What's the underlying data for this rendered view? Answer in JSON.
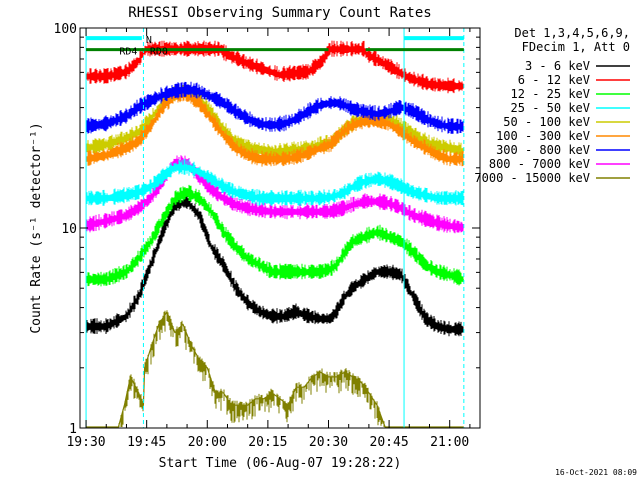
{
  "chart_data": {
    "type": "line",
    "title": "RHESSI Observing Summary Count Rates",
    "xlabel": "Start Time (06-Aug-07 19:28:22)",
    "ylabel": "Count Rate (s⁻¹ detector⁻¹)",
    "yscale": "log",
    "ylim": [
      1,
      100
    ],
    "xlim_minutes": [
      -1.5,
      97.5
    ],
    "x_ticks": [
      {
        "label": "19:30",
        "minute": 0
      },
      {
        "label": "19:45",
        "minute": 15
      },
      {
        "label": "20:00",
        "minute": 30
      },
      {
        "label": "20:15",
        "minute": 45
      },
      {
        "label": "20:30",
        "minute": 60
      },
      {
        "label": "20:45",
        "minute": 75
      },
      {
        "label": "21:00",
        "minute": 90
      }
    ],
    "y_tick_labels": [
      {
        "label": "1",
        "value": 1
      },
      {
        "label": "10",
        "value": 10
      },
      {
        "label": "100",
        "value": 100
      }
    ],
    "info_lines": [
      "Det 1,3,4,5,6,9,",
      "FDecim 1, Att 0"
    ],
    "footer_date": "16-Oct-2021 08:09",
    "series": [
      {
        "name": "3 - 6 keV",
        "color": "#000000",
        "x": [
          0,
          5,
          10,
          13,
          16,
          19,
          22,
          25,
          28,
          31,
          34,
          37,
          40,
          43,
          46,
          49,
          52,
          55,
          58,
          60.5,
          62,
          64,
          66,
          69,
          72,
          75,
          78,
          81,
          84,
          87,
          90,
          93.5
        ],
        "y": [
          3.2,
          3.2,
          3.6,
          4.5,
          6.5,
          9.5,
          13,
          13.5,
          11.5,
          8,
          6.5,
          5,
          4.2,
          3.8,
          3.6,
          3.6,
          3.8,
          3.6,
          3.5,
          3.5,
          3.8,
          4.5,
          5,
          5.5,
          6,
          6,
          5.8,
          4.5,
          3.5,
          3.2,
          3.1,
          3.1
        ]
      },
      {
        "name": "6 - 12 keV",
        "color": "#ff0000",
        "x": [
          0,
          5,
          10,
          13,
          14.3,
          15,
          20,
          30,
          33.5,
          34,
          40,
          48,
          55,
          58.5,
          60.2,
          61,
          66,
          68.8,
          69.3,
          75,
          80,
          85,
          90,
          93.5
        ],
        "y": [
          57,
          57,
          60,
          68,
          76,
          78,
          78,
          78,
          78,
          75,
          66,
          58,
          60,
          68,
          78,
          78,
          78,
          78,
          74,
          64,
          56,
          52,
          51,
          51
        ]
      },
      {
        "name": "12 - 25 keV",
        "color": "#00ff00",
        "x": [
          0,
          5,
          10,
          13,
          16,
          19,
          22,
          25,
          28,
          31,
          34,
          37,
          40,
          43,
          46,
          49,
          52,
          55,
          58,
          60.5,
          62,
          64,
          66,
          69,
          72,
          75,
          78,
          81,
          84,
          87,
          90,
          93.5
        ],
        "y": [
          5.5,
          5.5,
          6,
          7,
          8.5,
          11,
          14,
          15,
          14,
          12,
          9.5,
          8,
          7,
          6.5,
          6,
          6,
          6,
          6,
          6,
          6.2,
          6.5,
          7.5,
          8.5,
          9,
          9.5,
          9,
          8.5,
          7.5,
          6.5,
          6,
          5.8,
          5.5
        ]
      },
      {
        "name": "25 - 50 keV",
        "color": "#00ffff",
        "x": [
          0,
          5,
          10,
          13,
          16,
          19,
          22,
          25,
          28,
          31,
          34,
          37,
          40,
          43,
          46,
          49,
          52,
          55,
          58,
          60.5,
          62,
          64,
          66,
          69,
          72,
          75,
          78,
          81,
          84,
          87,
          90,
          93.5
        ],
        "y": [
          14,
          14,
          14.5,
          15,
          16,
          18,
          20,
          20,
          19,
          17.5,
          16,
          15,
          14.5,
          14,
          14,
          14,
          14,
          14,
          14,
          14.2,
          14.5,
          15,
          16,
          17,
          17.5,
          17,
          16,
          15,
          14.5,
          14,
          14,
          14
        ]
      },
      {
        "name": "50 - 100 keV",
        "color": "#cccc00",
        "x": [
          0,
          5,
          10,
          13,
          16,
          19,
          22,
          25,
          28,
          31,
          34,
          37,
          40,
          43,
          46,
          49,
          52,
          55,
          58,
          60.5,
          62,
          64,
          66,
          69,
          72,
          75,
          78,
          81,
          84,
          87,
          90,
          93.5
        ],
        "y": [
          25,
          26,
          28,
          30,
          35,
          42,
          47,
          48,
          44,
          38,
          31,
          27,
          25,
          24.5,
          24,
          24,
          24.5,
          25,
          26,
          26.5,
          28,
          31,
          33,
          35,
          36,
          35,
          32,
          29,
          27,
          25.5,
          25,
          24
        ]
      },
      {
        "name": "100 - 300 keV",
        "color": "#ff8800",
        "x": [
          0,
          5,
          10,
          13,
          16,
          19,
          22,
          25,
          28,
          31,
          34,
          37,
          40,
          43,
          46,
          49,
          52,
          55,
          58,
          60.5,
          62,
          64,
          66,
          69,
          72,
          75,
          78,
          81,
          84,
          87,
          90,
          93.5
        ],
        "y": [
          22,
          23,
          25,
          27,
          32,
          40,
          46,
          46,
          42,
          35,
          29,
          25,
          23,
          22,
          22,
          22,
          22.5,
          23.5,
          25,
          26,
          28,
          30.5,
          32.5,
          34,
          34.5,
          33,
          30,
          27,
          25,
          23,
          22,
          22
        ]
      },
      {
        "name": "300 - 800 keV",
        "color": "#0000ff",
        "x": [
          0,
          5,
          10,
          13,
          16,
          19,
          22,
          25,
          28,
          31,
          34,
          37,
          40,
          43,
          46,
          49,
          52,
          55,
          58,
          60.5,
          62,
          64,
          66,
          69,
          72,
          75,
          78,
          81,
          84,
          87,
          90,
          93.5
        ],
        "y": [
          32,
          33,
          36,
          40,
          43,
          46,
          48,
          49,
          48,
          45,
          42,
          38,
          35,
          33,
          32.5,
          33,
          35,
          38,
          41,
          42,
          42,
          41,
          39,
          38,
          37,
          38,
          40,
          38,
          35,
          33,
          32,
          32
        ]
      },
      {
        "name": "800 - 7000 keV",
        "color": "#ff00ff",
        "x": [
          0,
          5,
          10,
          13,
          16,
          19,
          22,
          25,
          28,
          31,
          34,
          37,
          40,
          43,
          46,
          49,
          52,
          55,
          58,
          60.5,
          62,
          64,
          66,
          69,
          72,
          75,
          78,
          81,
          84,
          87,
          90,
          93.5
        ],
        "y": [
          10.2,
          10.8,
          11.5,
          12.5,
          14,
          17,
          21,
          21,
          18,
          15.5,
          14,
          13,
          12.5,
          12.2,
          12,
          12,
          12,
          12,
          12,
          12,
          12.2,
          12.5,
          13,
          13.5,
          13.5,
          13.2,
          12.5,
          11.5,
          11,
          10.5,
          10.2,
          10
        ]
      },
      {
        "name": "7000 - 15000 keV",
        "color": "#808000",
        "x": [
          0,
          5,
          8,
          9.5,
          11,
          13,
          14.2,
          14.5,
          16,
          18,
          20,
          22,
          24,
          26,
          28,
          30,
          32,
          34,
          36,
          38,
          40,
          42,
          44,
          46,
          48,
          50,
          52,
          54,
          56,
          58,
          60,
          62,
          64,
          66,
          68,
          70,
          72,
          74,
          76,
          78,
          80,
          82,
          84,
          86,
          88,
          90,
          93.5
        ],
        "y": [
          1,
          1,
          1,
          1.3,
          1.8,
          1.5,
          1.3,
          2,
          2.5,
          3.3,
          3.8,
          3,
          3.3,
          2.6,
          2.2,
          2,
          1.5,
          1.5,
          1.3,
          1.3,
          1.3,
          1.4,
          1.4,
          1.5,
          1.4,
          1.3,
          1.6,
          1.6,
          1.8,
          1.9,
          1.8,
          1.8,
          1.9,
          1.8,
          1.7,
          1.5,
          1.3,
          1,
          1,
          1,
          1,
          1,
          1,
          1,
          1,
          1,
          1
        ]
      }
    ],
    "annotations": [
      {
        "label": "N",
        "color": "#00ffff",
        "x_start": 0,
        "x_end": 13.8,
        "level": 89
      },
      {
        "label": "N",
        "color": "#00ffff",
        "x_start": 78.7,
        "x_end": 93.5,
        "level": 89
      },
      {
        "label": "RD0",
        "color": "#008000",
        "x_start": 13.8,
        "x_end": 60,
        "level": 78
      },
      {
        "label": "RD4",
        "color": "#008000",
        "x_start": 0,
        "x_end": 14.2,
        "level": 78
      },
      {
        "label": "",
        "color": "#008000",
        "x_start": 69.2,
        "x_end": 93.5,
        "level": 78
      }
    ],
    "vertical_lines": [
      {
        "minute": 0,
        "color": "#00ffff",
        "style": "solid"
      },
      {
        "minute": 14.2,
        "color": "#00ffff",
        "style": "dashed"
      },
      {
        "minute": 78.7,
        "color": "#00ffff",
        "style": "solid"
      },
      {
        "minute": 93.5,
        "color": "#00ffff",
        "style": "dashed"
      }
    ]
  }
}
